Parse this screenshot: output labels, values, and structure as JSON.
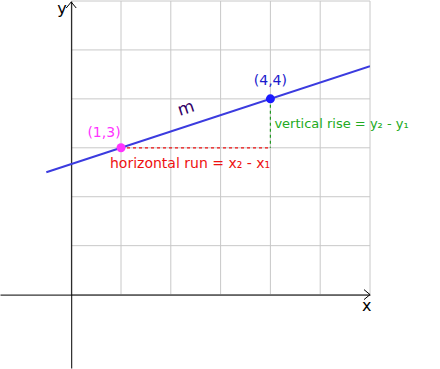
{
  "chart_data": {
    "type": "line",
    "x_label": "x",
    "y_label": "y",
    "xlim": [
      -1.43,
      6
    ],
    "ylim": [
      -1.5,
      6
    ],
    "xticks": [
      0,
      1,
      2,
      3,
      4,
      5,
      6
    ],
    "yticks": [
      0,
      1,
      2,
      3,
      4,
      5,
      6
    ],
    "grid": true,
    "tick_labels": false,
    "series": [
      {
        "type": "line",
        "color": "#3b3bdf",
        "x": [
          -0.5,
          6
        ],
        "values": [
          2.5,
          4.667
        ]
      },
      {
        "type": "scatter",
        "colors": [
          "#ff33ff",
          "#1a1aff"
        ],
        "marker": "circle",
        "x": [
          1,
          4
        ],
        "values": [
          3,
          4
        ]
      }
    ],
    "annotations": [
      "(1,3)",
      "(4,4)",
      "m",
      "vertical rise = y₂ - y₁",
      "horizontal run = x₂ - x₁"
    ]
  }
}
